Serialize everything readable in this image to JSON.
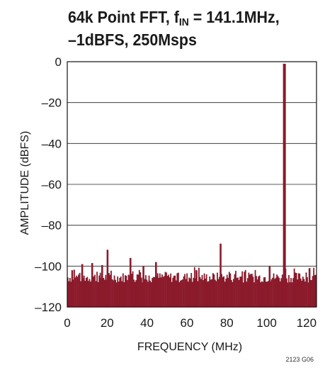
{
  "chart_data": {
    "type": "bar",
    "title_main": "64k Point FFT, f",
    "title_sub": "IN",
    "title_rest": " = 141.1MHz,",
    "title_line2": "–1dBFS, 250Msps",
    "xlabel": "FREQUENCY (MHz)",
    "ylabel": "AMPLITUDE (dBFS)",
    "xlim": [
      0,
      125
    ],
    "ylim": [
      -120,
      0
    ],
    "xticks": [
      0,
      20,
      40,
      60,
      80,
      100,
      120
    ],
    "yticks": [
      0,
      -20,
      -40,
      -60,
      -80,
      -100,
      -120
    ],
    "ytick_labels": [
      "0",
      "–20",
      "–40",
      "–60",
      "–80",
      "–100",
      "–120"
    ],
    "grid": "horizontal",
    "color": "#8b1a2b",
    "fundamental": {
      "x": 108.9,
      "y": -1
    },
    "spurs": [
      {
        "x": 2.5,
        "y": -102
      },
      {
        "x": 7.5,
        "y": -99
      },
      {
        "x": 12.5,
        "y": -98.5
      },
      {
        "x": 17.5,
        "y": -99.5
      },
      {
        "x": 20.2,
        "y": -92
      },
      {
        "x": 31.7,
        "y": -96
      },
      {
        "x": 38.2,
        "y": -100
      },
      {
        "x": 44.5,
        "y": -98
      },
      {
        "x": 64.8,
        "y": -102
      },
      {
        "x": 76.9,
        "y": -89
      },
      {
        "x": 101.5,
        "y": -100
      },
      {
        "x": 121.5,
        "y": -101
      }
    ],
    "noise_floor_top": [
      -103,
      -108
    ],
    "figure_id": "2123 G06"
  }
}
